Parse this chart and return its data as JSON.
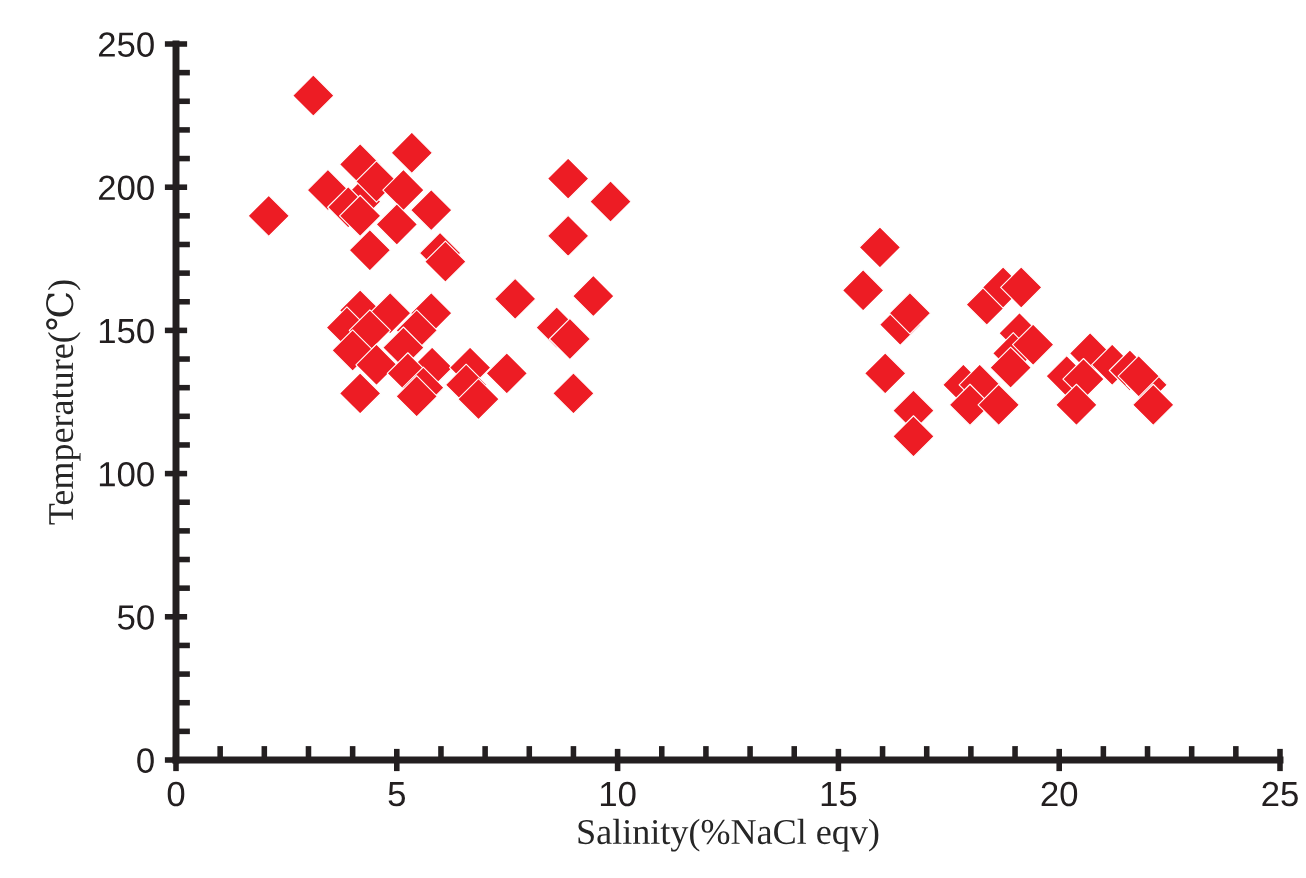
{
  "chart_data": {
    "type": "scatter",
    "xlabel": "Salinity(%NaCl eqv)",
    "ylabel": "Temperature(℃)",
    "series": [
      {
        "color": "#ed1c24",
        "x": [
          3.11,
          2.1,
          5.34,
          4.17,
          3.44,
          4.17,
          4.54,
          3.9,
          4.17,
          5.15,
          5.0,
          4.39,
          5.78,
          5.98,
          6.1,
          8.88,
          9.84,
          8.88,
          7.68,
          9.45,
          4.17,
          4.85,
          5.78,
          3.87,
          4.39,
          5.45,
          5.15,
          4.0,
          4.54,
          5.8,
          5.25,
          8.62,
          8.92,
          6.66,
          7.49,
          4.17,
          5.6,
          5.45,
          6.57,
          6.85,
          9.0,
          15.94,
          15.56,
          16.4,
          16.62,
          16.06,
          16.7,
          16.7,
          18.36,
          18.73,
          19.14,
          19.1,
          18.96,
          19.41,
          18.9,
          17.83,
          18.2,
          17.98,
          18.63,
          20.17,
          20.7,
          20.55,
          20.39,
          21.2,
          21.6,
          21.98,
          22.13,
          21.8
        ],
        "values": [
          232,
          190,
          212,
          208,
          199,
          195,
          202,
          193,
          190,
          199,
          187,
          178,
          192,
          177,
          174,
          203,
          195,
          183,
          161,
          162,
          157,
          156,
          156,
          151,
          150,
          150,
          144,
          143,
          138,
          137,
          135,
          151,
          147,
          137,
          135,
          128,
          130,
          127,
          131,
          126,
          128,
          179,
          164,
          152,
          156,
          135,
          122,
          113,
          159,
          165,
          165,
          149,
          142,
          145,
          137,
          131,
          131,
          124,
          124,
          134,
          142,
          133,
          124,
          138,
          136,
          131,
          124,
          134
        ]
      }
    ],
    "xlim": [
      0,
      25
    ],
    "ylim": [
      0,
      250
    ],
    "xticks": [
      0,
      5,
      10,
      15,
      20,
      25
    ],
    "yticks": [
      0,
      50,
      100,
      150,
      200,
      250
    ],
    "marker": "diamond",
    "grid": false
  }
}
